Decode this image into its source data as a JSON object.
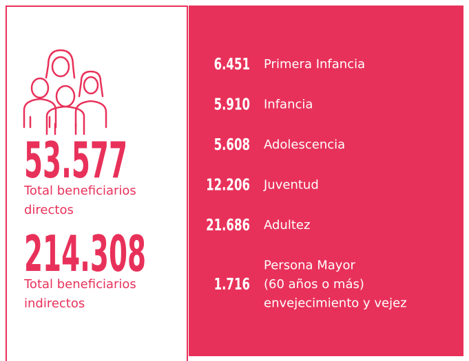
{
  "summary": [
    {
      "value": "53.577",
      "label": [
        "Total beneficiarios",
        "directos"
      ]
    },
    {
      "value": "214.308",
      "label": [
        "Total beneficiarios",
        "indirectos"
      ]
    }
  ],
  "groups": [
    {
      "value": "6.451",
      "label": [
        "Primera Infancia"
      ]
    },
    {
      "value": "5.910",
      "label": [
        "Infancia"
      ]
    },
    {
      "value": "5.608",
      "label": [
        "Adolescencia"
      ]
    },
    {
      "value": "12.206",
      "label": [
        "Juventud"
      ]
    },
    {
      "value": "21.686",
      "label": [
        "Adultez"
      ]
    },
    {
      "value": "1.716",
      "label": [
        "Persona Mayor",
        "(60 años o más)",
        "envejecimiento y vejez"
      ]
    }
  ]
}
